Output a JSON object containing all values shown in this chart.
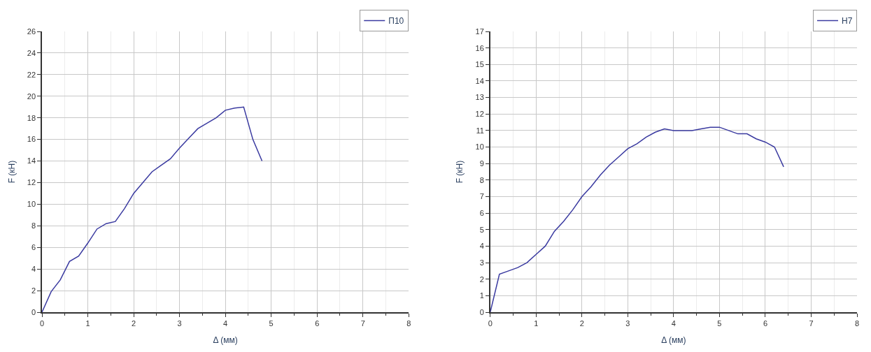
{
  "chart_data": [
    {
      "type": "line",
      "xlabel": "Δ (мм)",
      "ylabel": "F (кН)",
      "xlim": [
        0,
        8
      ],
      "xticks": [
        0,
        1,
        2,
        3,
        4,
        5,
        6,
        7,
        8
      ],
      "ylim": [
        0,
        26
      ],
      "yticks": [
        0,
        2,
        4,
        6,
        8,
        10,
        12,
        14,
        16,
        18,
        20,
        22,
        24,
        26
      ],
      "grid": true,
      "legend": "top right",
      "x": [
        0,
        0.2,
        0.4,
        0.6,
        0.8,
        1.0,
        1.2,
        1.4,
        1.6,
        1.8,
        2.0,
        2.2,
        2.4,
        2.6,
        2.8,
        3.0,
        3.2,
        3.4,
        3.6,
        3.8,
        4.0,
        4.2,
        4.4,
        4.6,
        4.8
      ],
      "series": [
        {
          "name": "П10",
          "color": "#3a3aa0",
          "values": [
            0,
            1.9,
            3.0,
            4.7,
            5.2,
            6.4,
            7.7,
            8.2,
            8.4,
            9.6,
            11.0,
            12.0,
            13.0,
            13.6,
            14.2,
            15.2,
            16.1,
            17.0,
            17.5,
            18.0,
            18.7,
            18.9,
            19.0,
            16.0,
            14.0
          ]
        }
      ]
    },
    {
      "type": "line",
      "xlabel": "Δ (мм)",
      "ylabel": "F (кН)",
      "xlim": [
        0,
        8
      ],
      "xticks": [
        0,
        1,
        2,
        3,
        4,
        5,
        6,
        7,
        8
      ],
      "ylim": [
        0,
        17
      ],
      "yticks": [
        0,
        1,
        2,
        3,
        4,
        5,
        6,
        7,
        8,
        9,
        10,
        11,
        12,
        13,
        14,
        15,
        16,
        17
      ],
      "grid": true,
      "legend": "top right",
      "x": [
        0,
        0.2,
        0.4,
        0.6,
        0.8,
        1.0,
        1.2,
        1.4,
        1.6,
        1.8,
        2.0,
        2.2,
        2.4,
        2.6,
        2.8,
        3.0,
        3.2,
        3.4,
        3.6,
        3.8,
        4.0,
        4.2,
        4.4,
        4.6,
        4.8,
        5.0,
        5.2,
        5.4,
        5.6,
        5.8,
        6.0,
        6.2,
        6.4
      ],
      "series": [
        {
          "name": "Н7",
          "color": "#3a3aa0",
          "values": [
            0,
            2.3,
            2.5,
            2.7,
            3.0,
            3.5,
            4.0,
            4.9,
            5.5,
            6.2,
            7.0,
            7.6,
            8.3,
            8.9,
            9.4,
            9.9,
            10.2,
            10.6,
            10.9,
            11.1,
            11.0,
            11.0,
            11.0,
            11.1,
            11.2,
            11.2,
            11.0,
            10.8,
            10.8,
            10.5,
            10.3,
            10.0,
            8.8
          ]
        }
      ]
    }
  ]
}
